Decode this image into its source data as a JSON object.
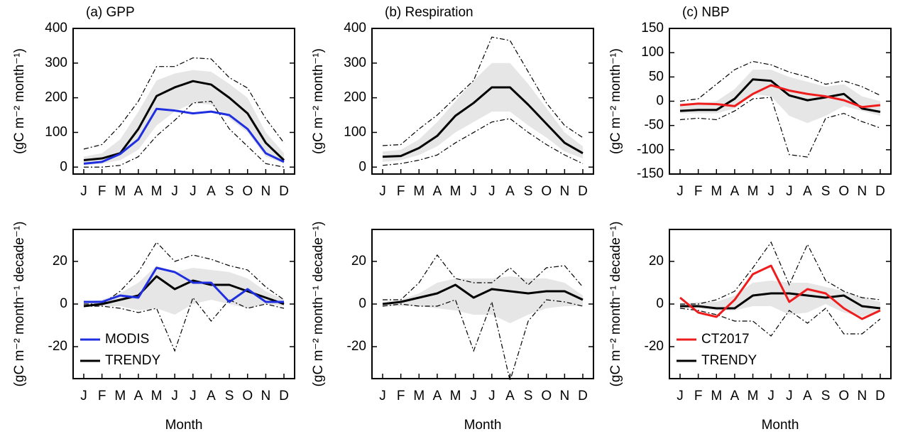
{
  "chart_data": [
    {
      "type": "line",
      "title": "(a) GPP",
      "ylabel": "(gC m⁻² month⁻¹)",
      "categories": [
        "J",
        "F",
        "M",
        "A",
        "M",
        "J",
        "J",
        "A",
        "S",
        "O",
        "N",
        "D"
      ],
      "ylim": [
        -20,
        400
      ],
      "yticks": [
        0,
        100,
        200,
        300,
        400
      ],
      "band": {
        "color": "#e6e6e6",
        "low": [
          5,
          10,
          20,
          50,
          120,
          160,
          185,
          180,
          140,
          100,
          30,
          10
        ],
        "high": [
          30,
          40,
          80,
          160,
          250,
          270,
          280,
          275,
          240,
          200,
          100,
          40
        ]
      },
      "envelope": {
        "color": "#000000",
        "low": [
          0,
          0,
          5,
          30,
          90,
          135,
          185,
          190,
          110,
          60,
          10,
          0
        ],
        "high": [
          52,
          65,
          120,
          190,
          290,
          290,
          315,
          312,
          258,
          228,
          140,
          70
        ]
      },
      "series": [
        {
          "color": "#000000",
          "values": [
            20,
            25,
            40,
            110,
            205,
            230,
            248,
            238,
            200,
            155,
            70,
            20
          ]
        },
        {
          "color": "#1f2fe0",
          "values": [
            10,
            15,
            38,
            80,
            168,
            163,
            155,
            160,
            150,
            110,
            40,
            15
          ]
        }
      ]
    },
    {
      "type": "line",
      "title": "(b) Respiration",
      "ylabel": "(gC m⁻² month⁻¹)",
      "categories": [
        "J",
        "F",
        "M",
        "A",
        "M",
        "J",
        "J",
        "A",
        "S",
        "O",
        "N",
        "D"
      ],
      "ylim": [
        -20,
        400
      ],
      "yticks": [
        0,
        100,
        200,
        300,
        400
      ],
      "band": {
        "color": "#e6e6e6",
        "low": [
          15,
          20,
          35,
          60,
          100,
          130,
          160,
          160,
          120,
          85,
          45,
          25
        ],
        "high": [
          45,
          50,
          80,
          130,
          190,
          250,
          300,
          300,
          240,
          170,
          100,
          60
        ]
      },
      "envelope": {
        "color": "#000000",
        "low": [
          5,
          10,
          20,
          35,
          70,
          100,
          130,
          140,
          100,
          65,
          35,
          10
        ],
        "high": [
          62,
          65,
          110,
          150,
          200,
          250,
          375,
          365,
          275,
          185,
          120,
          85
        ]
      },
      "series": [
        {
          "color": "#000000",
          "values": [
            30,
            32,
            55,
            90,
            148,
            185,
            230,
            230,
            180,
            125,
            70,
            40
          ]
        }
      ]
    },
    {
      "type": "line",
      "title": "(c) NBP",
      "ylabel": "(gC m⁻² month⁻¹)",
      "categories": [
        "J",
        "F",
        "M",
        "A",
        "M",
        "J",
        "J",
        "A",
        "S",
        "O",
        "N",
        "D"
      ],
      "ylim": [
        -150,
        150
      ],
      "yticks": [
        -150,
        -100,
        -50,
        0,
        50,
        100,
        150
      ],
      "band": {
        "color": "#e6e6e6",
        "low": [
          -25,
          -25,
          -25,
          -15,
          15,
          10,
          -30,
          -45,
          -30,
          -10,
          -20,
          -30
        ],
        "high": [
          -10,
          -5,
          0,
          25,
          65,
          65,
          50,
          40,
          30,
          35,
          10,
          0
        ]
      },
      "envelope": {
        "color": "#000000",
        "low": [
          -38,
          -35,
          -38,
          -20,
          5,
          8,
          -110,
          -115,
          -35,
          -25,
          -42,
          -55
        ],
        "high": [
          0,
          5,
          35,
          65,
          82,
          75,
          60,
          50,
          35,
          42,
          30,
          12
        ]
      },
      "series": [
        {
          "color": "#000000",
          "values": [
            -20,
            -18,
            -18,
            5,
            45,
            42,
            12,
            2,
            8,
            15,
            -15,
            -22
          ]
        },
        {
          "color": "#ee1c1c",
          "values": [
            -8,
            -5,
            -6,
            -10,
            15,
            33,
            22,
            15,
            10,
            2,
            -12,
            -8
          ]
        }
      ]
    },
    {
      "type": "line",
      "ylabel": "(gC m⁻² month⁻¹ decade⁻¹)",
      "xlabel": "Month",
      "categories": [
        "J",
        "F",
        "M",
        "A",
        "M",
        "J",
        "J",
        "A",
        "S",
        "O",
        "N",
        "D"
      ],
      "ylim": [
        -35,
        35
      ],
      "yticks": [
        -20,
        0,
        20
      ],
      "legend": "lower left",
      "band": {
        "color": "#e6e6e6",
        "low": [
          -1,
          -1,
          -1,
          -3,
          -2,
          -5,
          0,
          2,
          0,
          -2,
          0,
          -1
        ],
        "high": [
          1,
          2,
          5,
          10,
          18,
          15,
          17,
          16,
          15,
          12,
          6,
          2
        ]
      },
      "envelope": {
        "color": "#000000",
        "low": [
          -1,
          -1,
          -2,
          -4,
          -2,
          -22,
          3,
          -8,
          2,
          -2,
          0,
          -2
        ],
        "high": [
          0,
          0,
          6,
          15,
          29,
          20,
          23,
          21,
          18,
          16,
          8,
          2
        ]
      },
      "series": [
        {
          "name": "TRENDY",
          "color": "#000000",
          "values": [
            -1,
            0,
            2,
            4,
            13,
            7,
            11,
            9,
            9,
            6,
            3,
            0
          ]
        },
        {
          "name": "MODIS",
          "color": "#1f2fe0",
          "values": [
            1,
            1,
            4,
            3,
            17,
            15,
            10,
            10,
            1,
            7,
            1,
            1
          ]
        }
      ]
    },
    {
      "type": "line",
      "ylabel": "(gC m⁻² month⁻¹ decade⁻¹)",
      "xlabel": "Month",
      "categories": [
        "J",
        "F",
        "M",
        "A",
        "M",
        "J",
        "J",
        "A",
        "S",
        "O",
        "N",
        "D"
      ],
      "ylim": [
        -35,
        35
      ],
      "yticks": [
        -20,
        0,
        20
      ],
      "band": {
        "color": "#e6e6e6",
        "low": [
          -1,
          -1,
          -1,
          -2,
          -3,
          -5,
          -5,
          -9,
          -5,
          -2,
          -1,
          -1
        ],
        "high": [
          1,
          2,
          5,
          10,
          12,
          12,
          12,
          13,
          12,
          12,
          10,
          4
        ]
      },
      "envelope": {
        "color": "#000000",
        "low": [
          -1,
          0,
          -1,
          -1,
          2,
          -22,
          1,
          -36,
          -8,
          2,
          1,
          -1
        ],
        "high": [
          2,
          2,
          10,
          23,
          12,
          10,
          10,
          17,
          9,
          17,
          18,
          8
        ]
      },
      "series": [
        {
          "color": "#000000",
          "values": [
            0,
            1,
            3,
            5,
            9,
            3,
            7,
            6,
            5,
            6,
            6,
            2
          ]
        }
      ]
    },
    {
      "type": "line",
      "ylabel": "(gC m⁻² month⁻¹ decade⁻¹)",
      "xlabel": "Month",
      "categories": [
        "J",
        "F",
        "M",
        "A",
        "M",
        "J",
        "J",
        "A",
        "S",
        "O",
        "N",
        "D"
      ],
      "ylim": [
        -35,
        35
      ],
      "yticks": [
        -20,
        0,
        20
      ],
      "legend": "lower left",
      "band": {
        "color": "#e6e6e6",
        "low": [
          -2,
          -2,
          -3,
          -3,
          -1,
          -1,
          -5,
          -4,
          0,
          -4,
          -6,
          -3
        ],
        "high": [
          0,
          1,
          1,
          4,
          10,
          11,
          10,
          10,
          8,
          6,
          3,
          1
        ]
      },
      "envelope": {
        "color": "#000000",
        "low": [
          -2,
          -3,
          -5,
          -8,
          -8,
          -15,
          -3,
          -9,
          -2,
          -14,
          -14,
          -7
        ],
        "high": [
          0,
          0,
          2,
          6,
          17,
          29,
          9,
          28,
          11,
          6,
          3,
          2
        ]
      },
      "series": [
        {
          "name": "TRENDY",
          "color": "#000000",
          "values": [
            -1,
            -1,
            -2,
            -2,
            4,
            5,
            5,
            4,
            3,
            4,
            -1,
            -2
          ]
        },
        {
          "name": "CT2017",
          "color": "#ee1c1c",
          "values": [
            3,
            -4,
            -6,
            2,
            14,
            18,
            1,
            7,
            5,
            -2,
            -7,
            -3
          ]
        }
      ]
    }
  ]
}
